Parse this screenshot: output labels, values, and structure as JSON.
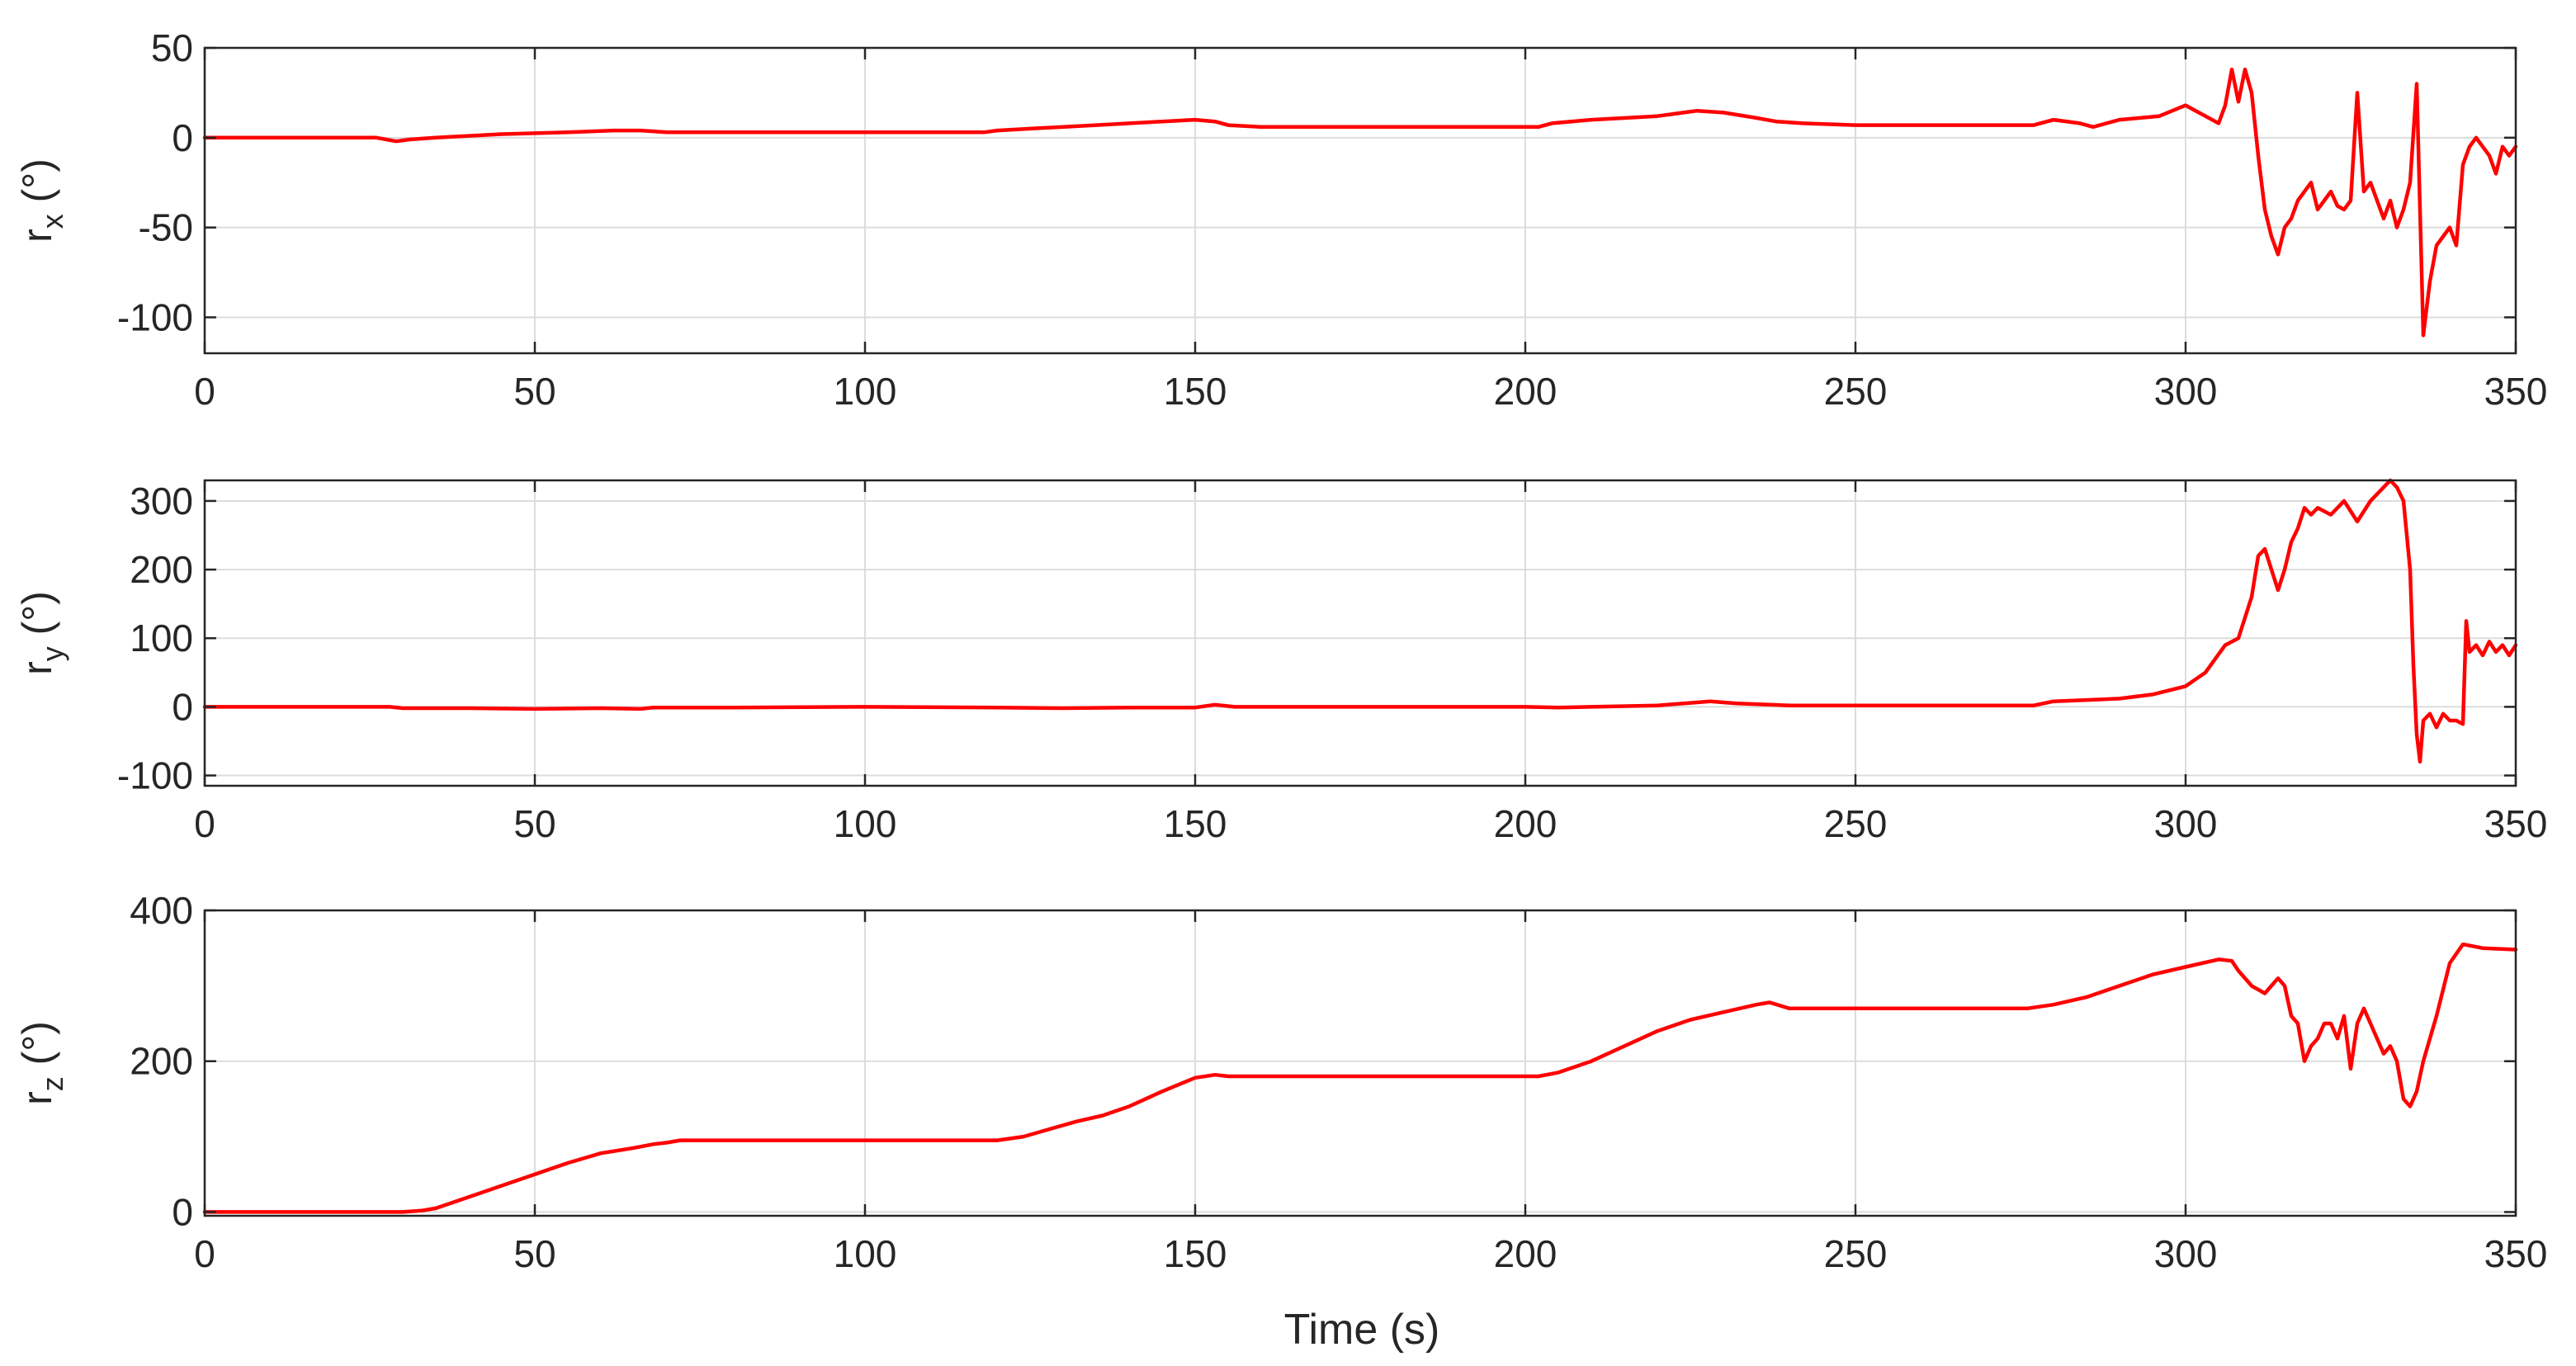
{
  "figure": {
    "xlabel": "Time (s)"
  },
  "colors": {
    "series": "#ff0000",
    "grid": "#dcdcdc",
    "axes": "#262626"
  },
  "chart_data": [
    {
      "type": "line",
      "ylabel_main": "r",
      "ylabel_sub": "x",
      "ylabel_unit": " (°)",
      "xlim": [
        0,
        350
      ],
      "ylim": [
        -120,
        50
      ],
      "xticks": [
        0,
        50,
        100,
        150,
        200,
        250,
        300,
        350
      ],
      "yticks": [
        50,
        0,
        -50,
        -100
      ],
      "grid": true,
      "series": [
        {
          "color": "#ff0000",
          "x": [
            0,
            10,
            20,
            26,
            29,
            31,
            35,
            40,
            45,
            55,
            62,
            66,
            70,
            80,
            100,
            118,
            120,
            125,
            135,
            145,
            150,
            153,
            155,
            160,
            180,
            200,
            202,
            204,
            210,
            220,
            226,
            230,
            235,
            238,
            242,
            250,
            260,
            270,
            277,
            280,
            284,
            286,
            290,
            296,
            300,
            303,
            305,
            306,
            307,
            308,
            309,
            310,
            311,
            312,
            313,
            314,
            315,
            316,
            317,
            318,
            319,
            320,
            321,
            322,
            323,
            324,
            325,
            326,
            327,
            328,
            329,
            330,
            331,
            332,
            333,
            334,
            335,
            336,
            337,
            338,
            339,
            340,
            341,
            342,
            343,
            344,
            345,
            346,
            347,
            348,
            349,
            350
          ],
          "y": [
            0,
            0,
            0,
            0,
            -2,
            -1,
            0,
            1,
            2,
            3,
            4,
            4,
            3,
            3,
            3,
            3,
            4,
            5,
            7,
            9,
            10,
            9,
            7,
            6,
            6,
            6,
            6,
            8,
            10,
            12,
            15,
            14,
            11,
            9,
            8,
            7,
            7,
            7,
            7,
            10,
            8,
            6,
            10,
            12,
            18,
            12,
            8,
            18,
            38,
            20,
            38,
            25,
            -10,
            -40,
            -55,
            -65,
            -50,
            -45,
            -35,
            -30,
            -25,
            -40,
            -35,
            -30,
            -38,
            -40,
            -35,
            25,
            -30,
            -25,
            -35,
            -45,
            -35,
            -50,
            -40,
            -25,
            30,
            -110,
            -80,
            -60,
            -55,
            -50,
            -60,
            -15,
            -5,
            0,
            -5,
            -10,
            -20,
            -5,
            -10,
            -5
          ]
        }
      ]
    },
    {
      "type": "line",
      "ylabel_main": "r",
      "ylabel_sub": "y",
      "ylabel_unit": " (°)",
      "xlim": [
        0,
        350
      ],
      "ylim": [
        -115,
        330
      ],
      "xticks": [
        0,
        50,
        100,
        150,
        200,
        250,
        300,
        350
      ],
      "yticks": [
        300,
        200,
        100,
        0,
        -100
      ],
      "grid": true,
      "series": [
        {
          "color": "#ff0000",
          "x": [
            0,
            10,
            20,
            28,
            30,
            32,
            40,
            50,
            60,
            66,
            68,
            80,
            100,
            120,
            130,
            140,
            150,
            153,
            156,
            160,
            180,
            200,
            205,
            210,
            220,
            228,
            232,
            240,
            250,
            260,
            270,
            277,
            280,
            285,
            290,
            295,
            300,
            303,
            306,
            308,
            310,
            311,
            312,
            313,
            314,
            315,
            316,
            317,
            318,
            319,
            320,
            322,
            324,
            326,
            328,
            330,
            331,
            332,
            333,
            334,
            334.5,
            335,
            335.5,
            336,
            337,
            338,
            339,
            340,
            341,
            342,
            342.5,
            343,
            344,
            345,
            346,
            347,
            348,
            349,
            350
          ],
          "y": [
            0,
            0,
            0,
            0,
            -2,
            -2,
            -2,
            -3,
            -2,
            -3,
            -1,
            -1,
            0,
            -1,
            -2,
            -1,
            -1,
            3,
            0,
            0,
            0,
            0,
            -1,
            0,
            2,
            8,
            5,
            2,
            2,
            2,
            2,
            2,
            8,
            10,
            12,
            18,
            30,
            50,
            90,
            100,
            160,
            220,
            230,
            200,
            170,
            200,
            240,
            260,
            290,
            280,
            290,
            280,
            300,
            270,
            300,
            320,
            330,
            320,
            300,
            200,
            60,
            -40,
            -80,
            -20,
            -10,
            -30,
            -10,
            -20,
            -20,
            -25,
            125,
            80,
            90,
            75,
            95,
            80,
            90,
            75,
            90
          ]
        }
      ]
    },
    {
      "type": "line",
      "ylabel_main": "r",
      "ylabel_sub": "z",
      "ylabel_unit": " (°)",
      "xlim": [
        0,
        350
      ],
      "ylim": [
        -5,
        400
      ],
      "xticks": [
        0,
        50,
        100,
        150,
        200,
        250,
        300,
        350
      ],
      "yticks": [
        400,
        200,
        0
      ],
      "grid": true,
      "series": [
        {
          "color": "#ff0000",
          "x": [
            0,
            10,
            20,
            30,
            33,
            35,
            40,
            45,
            50,
            55,
            60,
            65,
            68,
            70,
            72,
            80,
            100,
            120,
            124,
            128,
            132,
            136,
            140,
            145,
            150,
            153,
            155,
            160,
            180,
            200,
            202,
            205,
            210,
            215,
            220,
            225,
            230,
            235,
            237,
            240,
            250,
            260,
            270,
            276,
            280,
            285,
            290,
            295,
            300,
            305,
            307,
            308,
            310,
            312,
            314,
            315,
            316,
            317,
            318,
            319,
            320,
            321,
            322,
            323,
            324,
            325,
            326,
            327,
            328,
            329,
            330,
            331,
            332,
            333,
            334,
            335,
            336,
            338,
            340,
            342,
            345,
            350
          ],
          "y": [
            0,
            0,
            0,
            0,
            2,
            5,
            20,
            35,
            50,
            65,
            78,
            85,
            90,
            92,
            95,
            95,
            95,
            95,
            100,
            110,
            120,
            128,
            140,
            160,
            178,
            182,
            180,
            180,
            180,
            180,
            180,
            185,
            200,
            220,
            240,
            255,
            265,
            275,
            278,
            270,
            270,
            270,
            270,
            270,
            275,
            285,
            300,
            315,
            325,
            335,
            333,
            320,
            300,
            290,
            310,
            300,
            260,
            250,
            200,
            220,
            230,
            250,
            250,
            230,
            260,
            190,
            250,
            270,
            250,
            230,
            210,
            220,
            200,
            150,
            140,
            160,
            200,
            260,
            330,
            355,
            350,
            348
          ]
        }
      ]
    }
  ]
}
